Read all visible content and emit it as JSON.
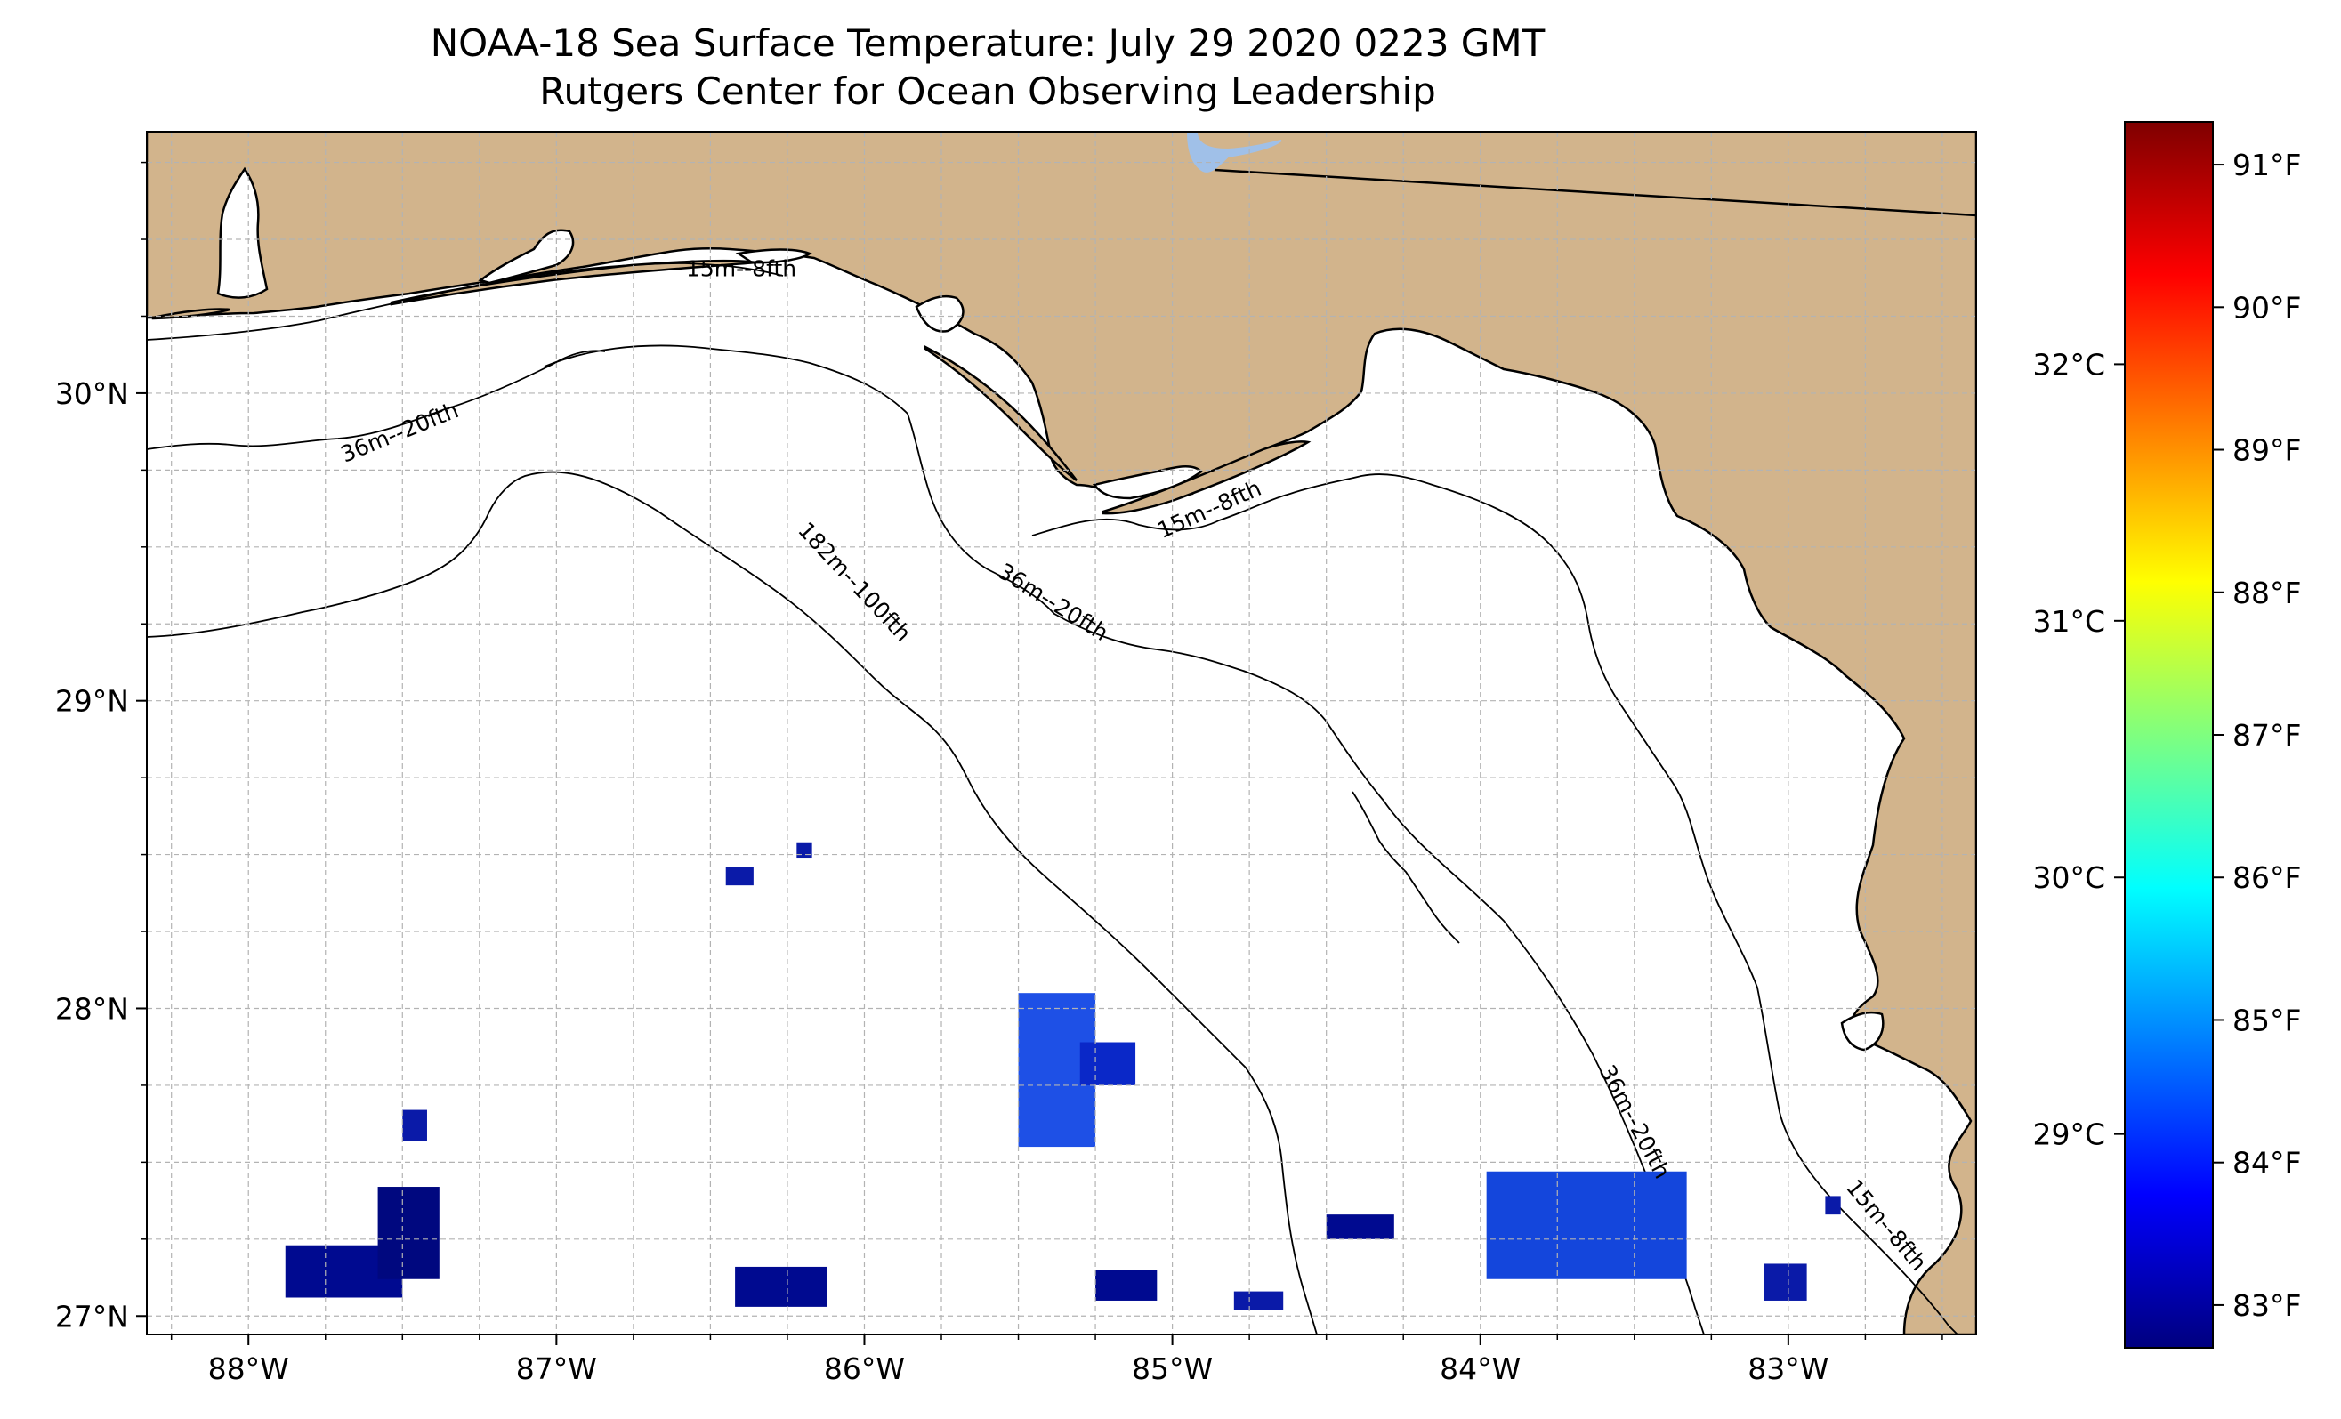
{
  "title": {
    "line1": "NOAA-18 Sea Surface Temperature: July 29 2020 0223 GMT",
    "line2": "Rutgers Center for Ocean Observing Leadership"
  },
  "map": {
    "extent": {
      "lon_min": -88.33,
      "lon_max": -82.39,
      "lat_min": 26.94,
      "lat_max": 30.85
    },
    "land_color": "#d2b48c",
    "coastline_color": "#000000",
    "lake_color": "#a0c0e8",
    "grid": {
      "on": true,
      "style": "dashed",
      "color": "#b3b3b3"
    },
    "lon_ticks": [
      {
        "value": -88,
        "label": "88°W"
      },
      {
        "value": -87,
        "label": "87°W"
      },
      {
        "value": -86,
        "label": "86°W"
      },
      {
        "value": -85,
        "label": "85°W"
      },
      {
        "value": -84,
        "label": "84°W"
      },
      {
        "value": -83,
        "label": "83°W"
      }
    ],
    "lat_ticks": [
      {
        "value": 30,
        "label": "30°N"
      },
      {
        "value": 29,
        "label": "29°N"
      },
      {
        "value": 28,
        "label": "28°N"
      },
      {
        "value": 27,
        "label": "27°N"
      }
    ],
    "contour_labels": [
      {
        "text": "15m--8fth",
        "lon": -86.4,
        "lat": 30.38,
        "angle": 0
      },
      {
        "text": "36m--20fth",
        "lon": -87.5,
        "lat": 29.85,
        "angle": -22
      },
      {
        "text": "182m--100fth",
        "lon": -86.05,
        "lat": 29.37,
        "angle": 47
      },
      {
        "text": "36m--20fth",
        "lon": -85.4,
        "lat": 29.3,
        "angle": 32
      },
      {
        "text": "15m--8fth",
        "lon": -84.87,
        "lat": 29.6,
        "angle": -24
      },
      {
        "text": "36m--20fth",
        "lon": -83.52,
        "lat": 27.62,
        "angle": 62
      },
      {
        "text": "15m--8fth",
        "lon": -82.7,
        "lat": 27.28,
        "angle": 50
      }
    ],
    "sst_patches": [
      {
        "lon": -87.88,
        "lat": 27.06,
        "w_deg": 0.38,
        "h_deg": 0.17,
        "color": "#000a90"
      },
      {
        "lon": -87.58,
        "lat": 27.12,
        "w_deg": 0.2,
        "h_deg": 0.3,
        "color": "#00087f"
      },
      {
        "lon": -87.5,
        "lat": 27.57,
        "w_deg": 0.08,
        "h_deg": 0.1,
        "color": "#0a1aa8"
      },
      {
        "lon": -86.45,
        "lat": 28.4,
        "w_deg": 0.09,
        "h_deg": 0.06,
        "color": "#0a1aa8"
      },
      {
        "lon": -86.22,
        "lat": 28.49,
        "w_deg": 0.05,
        "h_deg": 0.05,
        "color": "#0a1aa8"
      },
      {
        "lon": -86.42,
        "lat": 27.03,
        "w_deg": 0.3,
        "h_deg": 0.13,
        "color": "#000a90"
      },
      {
        "lon": -85.5,
        "lat": 27.55,
        "w_deg": 0.25,
        "h_deg": 0.5,
        "color": "#1e50e6"
      },
      {
        "lon": -85.3,
        "lat": 27.75,
        "w_deg": 0.18,
        "h_deg": 0.14,
        "color": "#0a28c8"
      },
      {
        "lon": -85.25,
        "lat": 27.05,
        "w_deg": 0.2,
        "h_deg": 0.1,
        "color": "#000a90"
      },
      {
        "lon": -84.8,
        "lat": 27.02,
        "w_deg": 0.16,
        "h_deg": 0.06,
        "color": "#0a1aa8"
      },
      {
        "lon": -84.5,
        "lat": 27.25,
        "w_deg": 0.22,
        "h_deg": 0.08,
        "color": "#000a90"
      },
      {
        "lon": -83.98,
        "lat": 27.12,
        "w_deg": 0.65,
        "h_deg": 0.35,
        "color": "#1446dc"
      },
      {
        "lon": -83.08,
        "lat": 27.05,
        "w_deg": 0.14,
        "h_deg": 0.12,
        "color": "#0a1aa8"
      },
      {
        "lon": -82.88,
        "lat": 27.33,
        "w_deg": 0.05,
        "h_deg": 0.06,
        "color": "#0a1aa8"
      }
    ]
  },
  "colorbar": {
    "celsius_ticks": [
      {
        "value": 29,
        "label": "29°C"
      },
      {
        "value": 30,
        "label": "30°C"
      },
      {
        "value": 31,
        "label": "31°C"
      },
      {
        "value": 32,
        "label": "32°C"
      }
    ],
    "fahrenheit_ticks": [
      {
        "value": 83,
        "label": "83°F"
      },
      {
        "value": 84,
        "label": "84°F"
      },
      {
        "value": 85,
        "label": "85°F"
      },
      {
        "value": 86,
        "label": "86°F"
      },
      {
        "value": 87,
        "label": "87°F"
      },
      {
        "value": 88,
        "label": "88°F"
      },
      {
        "value": 89,
        "label": "89°F"
      },
      {
        "value": 90,
        "label": "90°F"
      },
      {
        "value": 91,
        "label": "91°F"
      }
    ],
    "f_range": [
      82.7,
      91.3
    ],
    "colormap": [
      "#00007f",
      "#0000ff",
      "#007fff",
      "#00ffff",
      "#7fff7f",
      "#ffff00",
      "#ff7f00",
      "#ff0000",
      "#7f0000"
    ]
  }
}
